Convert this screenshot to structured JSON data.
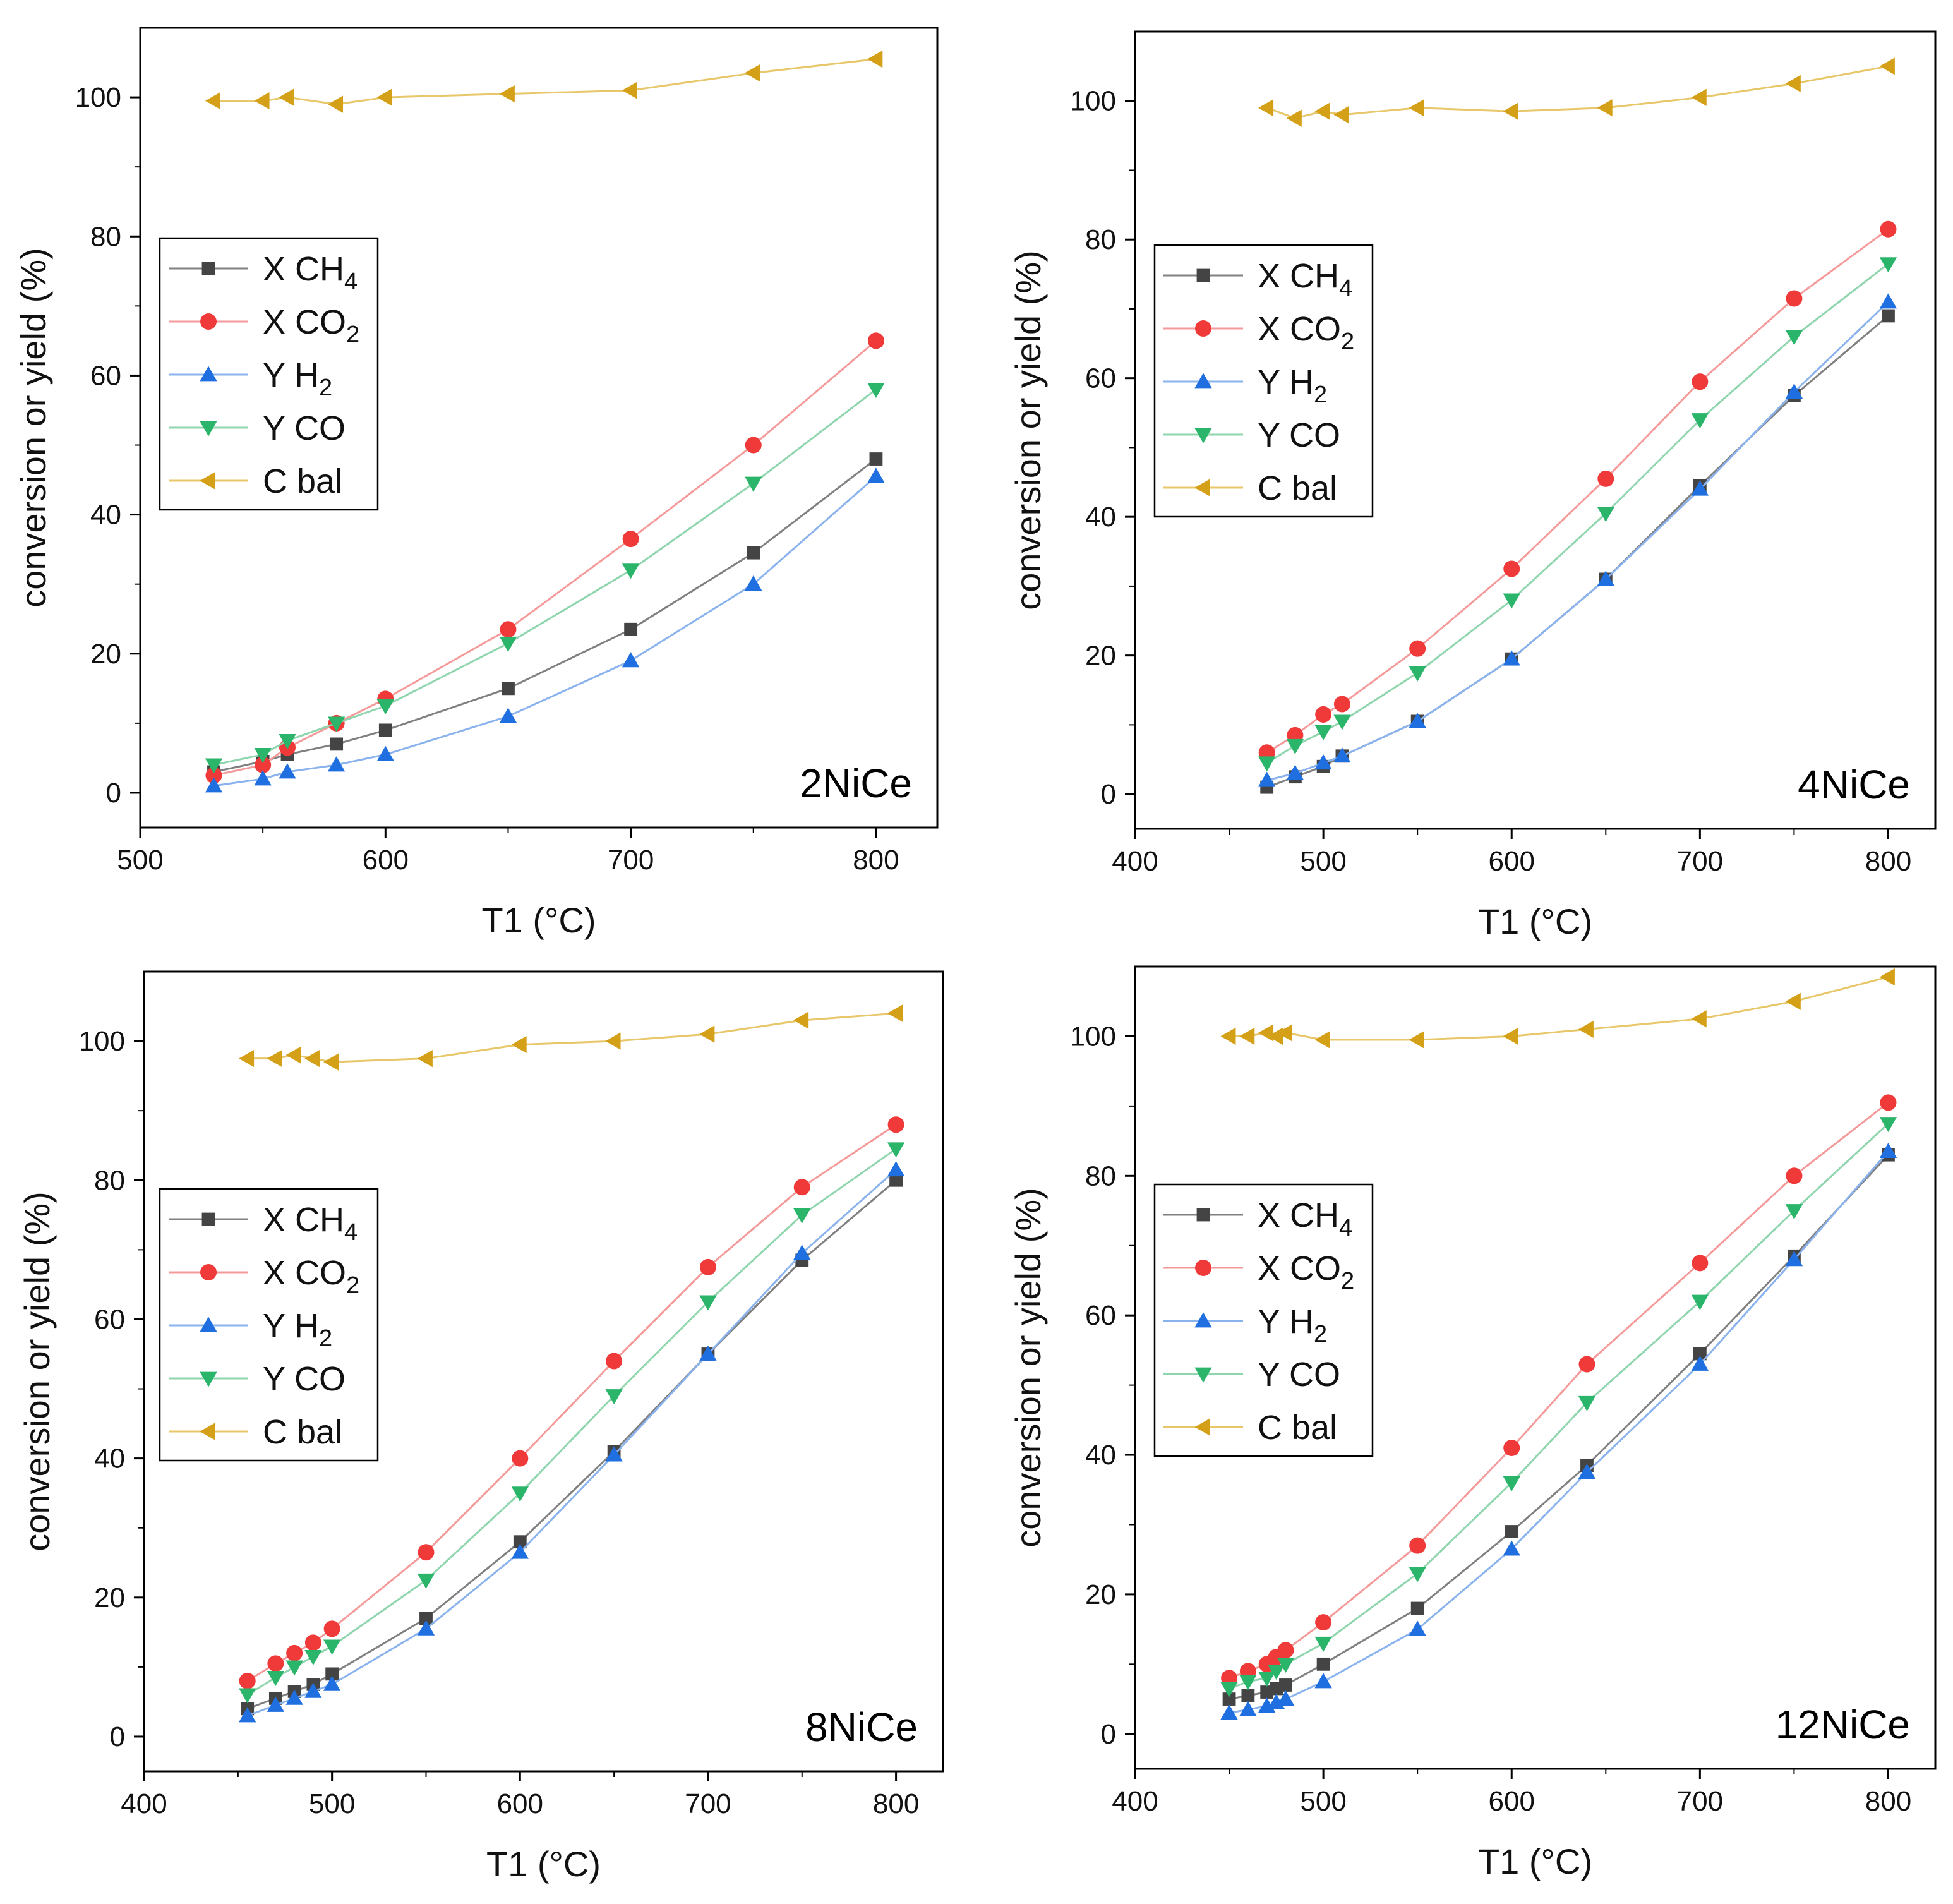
{
  "colors": {
    "x_ch4": "#444444",
    "x_co2": "#f03a3a",
    "y_h2": "#1f6fe0",
    "y_co": "#2bb56b",
    "c_bal": "#d4a017",
    "x_ch4_line": "#808080",
    "x_co2_line": "#f59a9a",
    "y_h2_line": "#8ab3ee",
    "y_co_line": "#8fd5ad",
    "c_bal_line": "#e8c76a"
  },
  "legend_entries": [
    {
      "key": "x_ch4",
      "prefix": "X CH",
      "sub": "4",
      "marker": "square"
    },
    {
      "key": "x_co2",
      "prefix": "X CO",
      "sub": "2",
      "marker": "circle"
    },
    {
      "key": "y_h2",
      "prefix": "Y H",
      "sub": "2",
      "marker": "triangle-up"
    },
    {
      "key": "y_co",
      "prefix": "Y CO",
      "sub": "",
      "marker": "triangle-down"
    },
    {
      "key": "c_bal",
      "prefix": "C bal",
      "sub": "",
      "marker": "triangle-left"
    }
  ],
  "chart_data": [
    {
      "type": "line",
      "panel_label": "2NiCe",
      "xlabel": "T1 (°C)",
      "ylabel": "conversion or yield (%)",
      "xlim": [
        500,
        825
      ],
      "ylim": [
        -5,
        110
      ],
      "xticks": [
        500,
        600,
        700,
        800
      ],
      "yticks": [
        0,
        20,
        40,
        60,
        80,
        100
      ],
      "series": [
        {
          "key": "x_ch4",
          "x": [
            530,
            550,
            560,
            580,
            600,
            650,
            700,
            750,
            800
          ],
          "y": [
            3,
            4.5,
            5.5,
            7,
            9,
            15,
            23.5,
            34.5,
            48
          ]
        },
        {
          "key": "x_co2",
          "x": [
            530,
            550,
            560,
            580,
            600,
            650,
            700,
            750,
            800
          ],
          "y": [
            2.5,
            4,
            6.5,
            10,
            13.5,
            23.5,
            36.5,
            50,
            65
          ]
        },
        {
          "key": "y_h2",
          "x": [
            530,
            550,
            560,
            580,
            600,
            650,
            700,
            750,
            800
          ],
          "y": [
            1,
            2,
            3,
            4,
            5.5,
            11,
            19,
            30,
            45.5
          ]
        },
        {
          "key": "y_co",
          "x": [
            530,
            550,
            560,
            580,
            600,
            650,
            700,
            750,
            800
          ],
          "y": [
            4,
            5.5,
            7.5,
            10,
            12.5,
            21.5,
            32,
            44.5,
            58
          ]
        },
        {
          "key": "c_bal",
          "x": [
            530,
            550,
            560,
            580,
            600,
            650,
            700,
            750,
            800
          ],
          "y": [
            99.5,
            99.5,
            100,
            99,
            100,
            100.5,
            101,
            103.5,
            105.5
          ]
        }
      ]
    },
    {
      "type": "line",
      "panel_label": "4NiCe",
      "xlabel": "T1 (°C)",
      "ylabel": "conversion or yield (%)",
      "xlim": [
        400,
        825
      ],
      "ylim": [
        -5,
        110
      ],
      "xticks": [
        400,
        500,
        600,
        700,
        800
      ],
      "yticks": [
        0,
        20,
        40,
        60,
        80,
        100
      ],
      "series": [
        {
          "key": "x_ch4",
          "x": [
            470,
            485,
            500,
            510,
            550,
            600,
            650,
            700,
            750,
            800
          ],
          "y": [
            1,
            2.5,
            4,
            5.5,
            10.5,
            19.5,
            31,
            44.5,
            57.5,
            69
          ]
        },
        {
          "key": "x_co2",
          "x": [
            470,
            485,
            500,
            510,
            550,
            600,
            650,
            700,
            750,
            800
          ],
          "y": [
            6,
            8.5,
            11.5,
            13,
            21,
            32.5,
            45.5,
            59.5,
            71.5,
            81.5
          ]
        },
        {
          "key": "y_h2",
          "x": [
            470,
            485,
            500,
            510,
            550,
            600,
            650,
            700,
            750,
            800
          ],
          "y": [
            2,
            3,
            4.5,
            5.5,
            10.5,
            19.5,
            31,
            44,
            58,
            71
          ]
        },
        {
          "key": "y_co",
          "x": [
            470,
            485,
            500,
            510,
            550,
            600,
            650,
            700,
            750,
            800
          ],
          "y": [
            4.5,
            7,
            9,
            10.5,
            17.5,
            28,
            40.5,
            54,
            66,
            76.5
          ]
        },
        {
          "key": "c_bal",
          "x": [
            470,
            485,
            500,
            510,
            550,
            600,
            650,
            700,
            750,
            800
          ],
          "y": [
            99,
            97.5,
            98.5,
            98,
            99,
            98.5,
            99,
            100.5,
            102.5,
            105
          ]
        }
      ]
    },
    {
      "type": "line",
      "panel_label": "8NiCe",
      "xlabel": "T1 (°C)",
      "ylabel": "conversion or yield (%)",
      "xlim": [
        400,
        825
      ],
      "ylim": [
        -5,
        110
      ],
      "xticks": [
        400,
        500,
        600,
        700,
        800
      ],
      "yticks": [
        0,
        20,
        40,
        60,
        80,
        100
      ],
      "series": [
        {
          "key": "x_ch4",
          "x": [
            455,
            470,
            480,
            490,
            500,
            550,
            600,
            650,
            700,
            750,
            800
          ],
          "y": [
            4,
            5.5,
            6.5,
            7.5,
            9,
            17,
            28,
            41,
            55,
            68.5,
            80
          ]
        },
        {
          "key": "x_co2",
          "x": [
            455,
            470,
            480,
            490,
            500,
            550,
            600,
            650,
            700,
            750,
            800
          ],
          "y": [
            8,
            10.5,
            12,
            13.5,
            15.5,
            26.5,
            40,
            54,
            67.5,
            79,
            88
          ]
        },
        {
          "key": "y_h2",
          "x": [
            455,
            470,
            480,
            490,
            500,
            550,
            600,
            650,
            700,
            750,
            800
          ],
          "y": [
            3,
            4.5,
            5.5,
            6.5,
            7.5,
            15.5,
            26.5,
            40.5,
            55,
            69.5,
            81.5
          ]
        },
        {
          "key": "y_co",
          "x": [
            455,
            470,
            480,
            490,
            500,
            550,
            600,
            650,
            700,
            750,
            800
          ],
          "y": [
            6,
            8.5,
            10,
            11.5,
            13,
            22.5,
            35,
            49,
            62.5,
            75,
            84.5
          ]
        },
        {
          "key": "c_bal",
          "x": [
            455,
            470,
            480,
            490,
            500,
            550,
            600,
            650,
            700,
            750,
            800
          ],
          "y": [
            97.5,
            97.5,
            98,
            97.5,
            97,
            97.5,
            99.5,
            100,
            101,
            103,
            104
          ]
        }
      ]
    },
    {
      "type": "line",
      "panel_label": "12NiCe",
      "xlabel": "T1 (°C)",
      "ylabel": "conversion or yield (%)",
      "xlim": [
        400,
        825
      ],
      "ylim": [
        -5,
        110
      ],
      "xticks": [
        400,
        500,
        600,
        700,
        800
      ],
      "yticks": [
        0,
        20,
        40,
        60,
        80,
        100
      ],
      "series": [
        {
          "key": "x_ch4",
          "x": [
            450,
            460,
            470,
            475,
            480,
            500,
            550,
            600,
            640,
            700,
            750,
            800
          ],
          "y": [
            5,
            5.5,
            6,
            6.5,
            7,
            10,
            18,
            29,
            38.5,
            54.5,
            68.5,
            83
          ]
        },
        {
          "key": "x_co2",
          "x": [
            450,
            460,
            470,
            475,
            480,
            500,
            550,
            600,
            640,
            700,
            750,
            800
          ],
          "y": [
            8,
            9,
            10,
            11,
            12,
            16,
            27,
            41,
            53,
            67.5,
            80,
            90.5
          ]
        },
        {
          "key": "y_h2",
          "x": [
            450,
            460,
            470,
            475,
            480,
            500,
            550,
            600,
            640,
            700,
            750,
            800
          ],
          "y": [
            3,
            3.5,
            4,
            4.5,
            5,
            7.5,
            15,
            26.5,
            37.5,
            53,
            68,
            83.5
          ]
        },
        {
          "key": "y_co",
          "x": [
            450,
            460,
            470,
            475,
            480,
            500,
            550,
            600,
            640,
            700,
            750,
            800
          ],
          "y": [
            6.5,
            7.5,
            8,
            9,
            10,
            13,
            23,
            36,
            47.5,
            62,
            75,
            87.5
          ]
        },
        {
          "key": "c_bal",
          "x": [
            450,
            460,
            470,
            475,
            480,
            500,
            550,
            600,
            640,
            700,
            750,
            800
          ],
          "y": [
            100,
            100,
            100.5,
            100,
            100.5,
            99.5,
            99.5,
            100,
            101,
            102.5,
            105,
            108.5
          ]
        }
      ]
    }
  ]
}
